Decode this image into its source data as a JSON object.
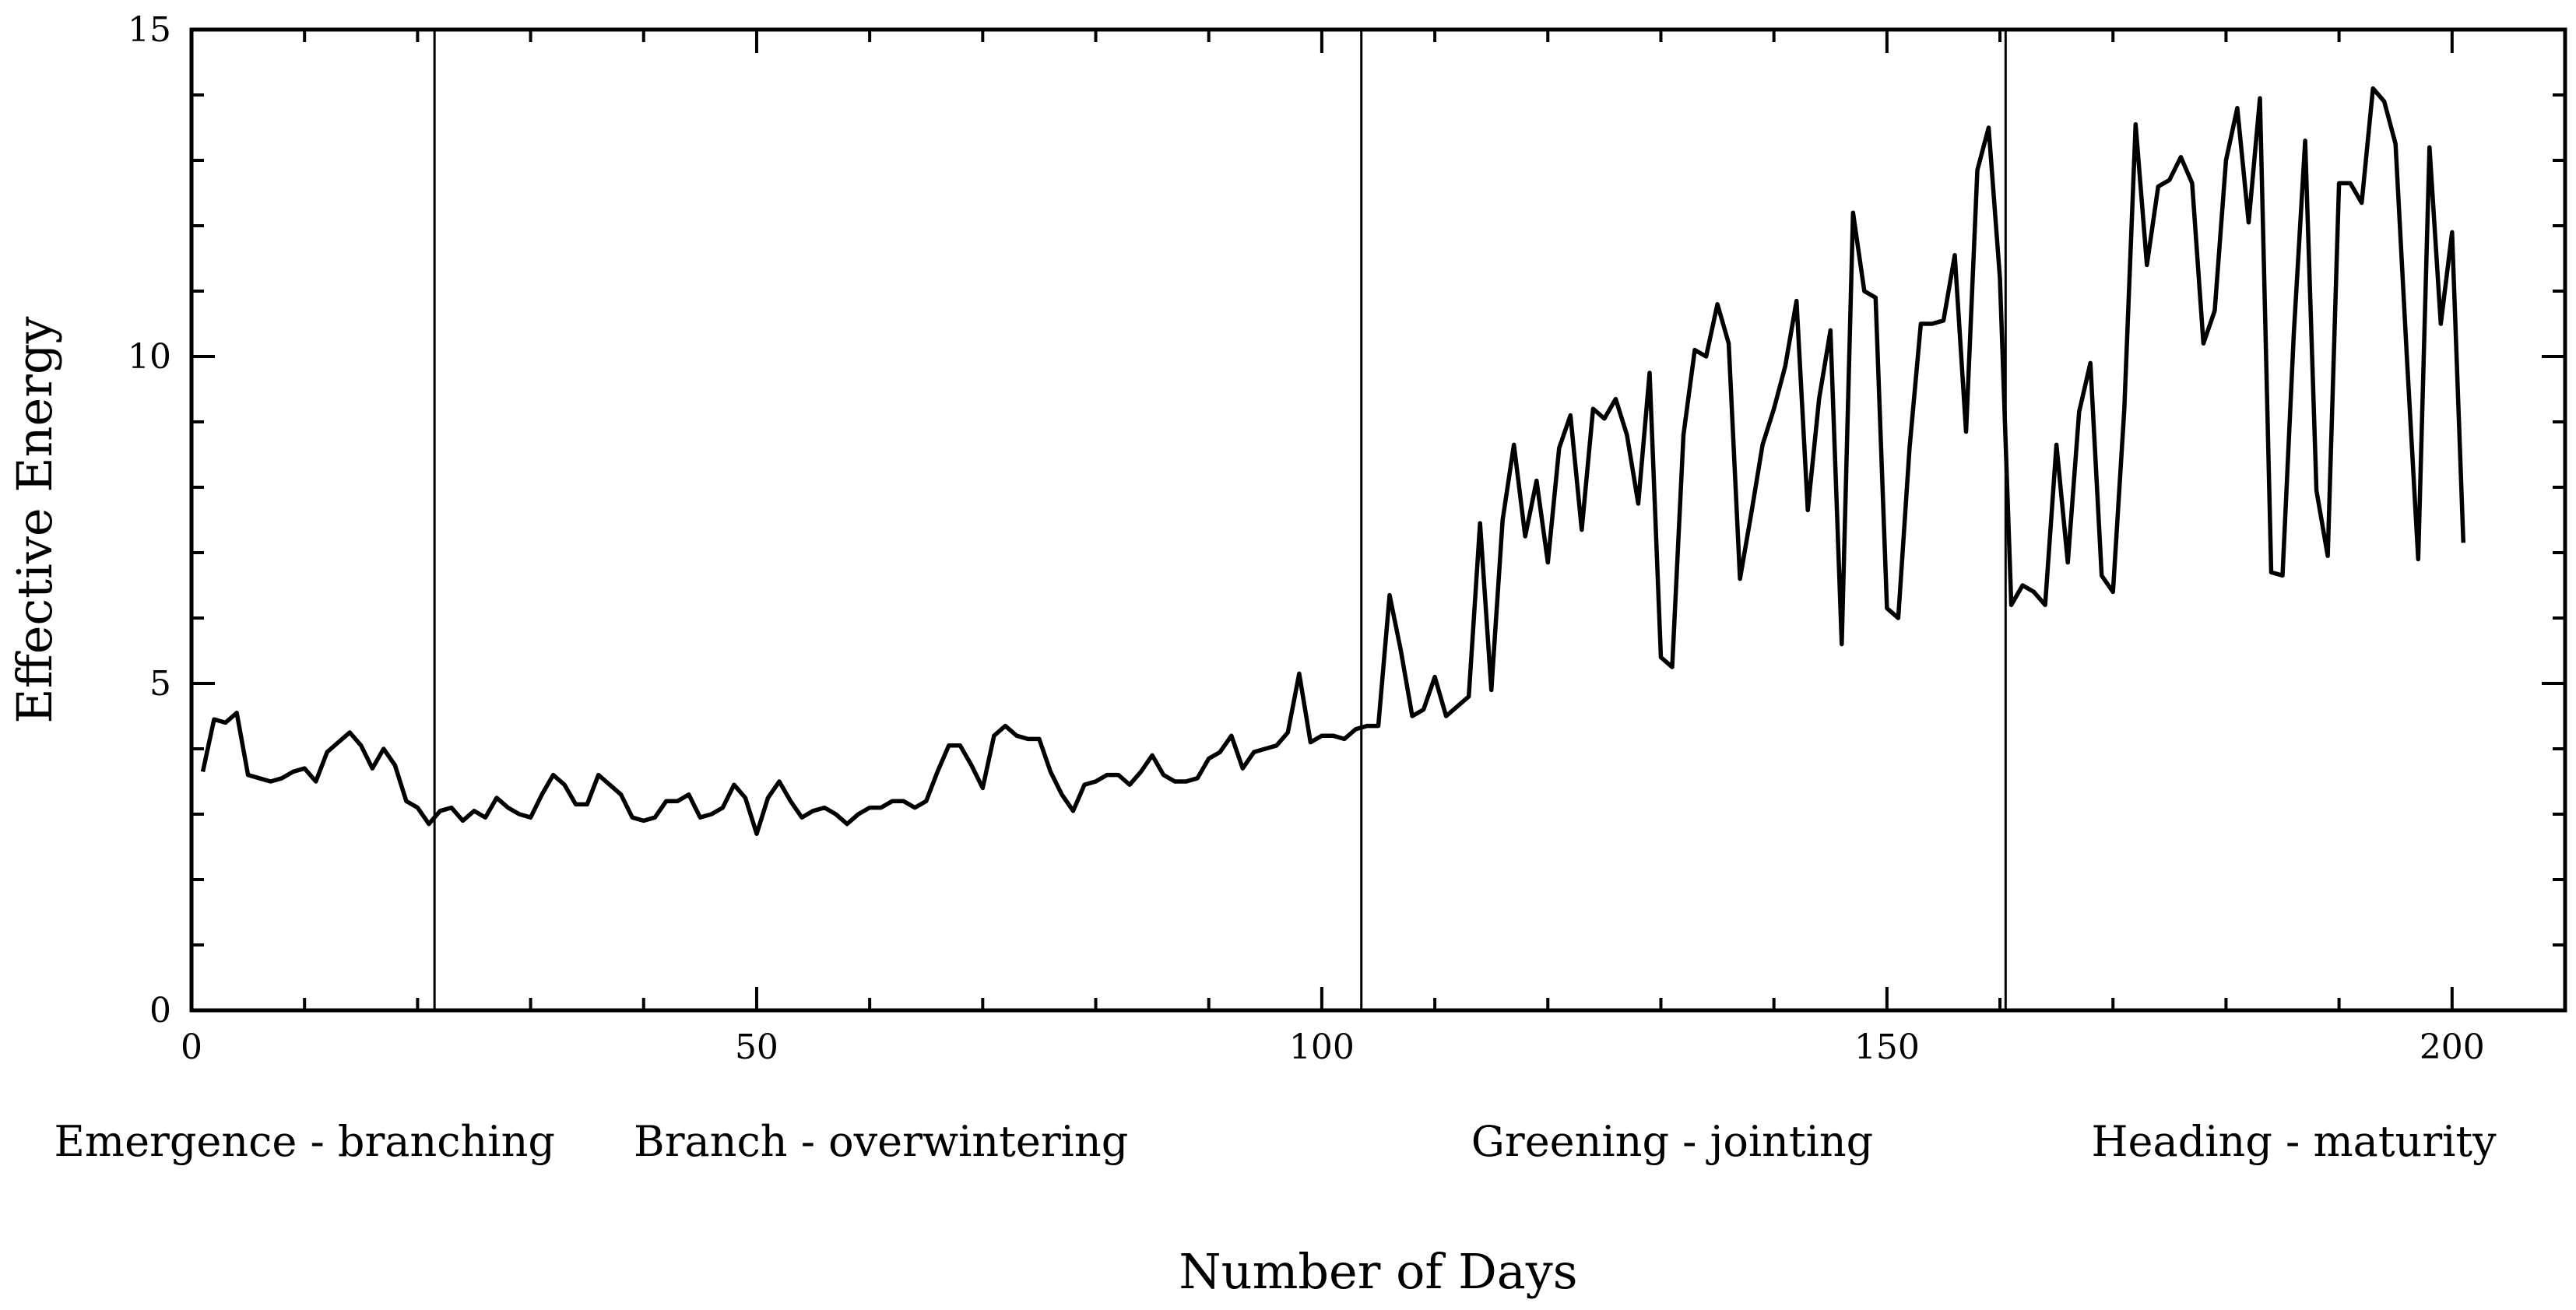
{
  "chart_data": {
    "type": "line",
    "title": "",
    "xlabel": "Number of Days",
    "ylabel": "Effective Energy",
    "xlim": [
      0,
      210
    ],
    "ylim": [
      0,
      15
    ],
    "x_ticks": [
      0,
      50,
      100,
      150,
      200
    ],
    "y_ticks": [
      0,
      5,
      10,
      15
    ],
    "grid": false,
    "phase_boundaries": [
      21.5,
      103.5,
      160.5
    ],
    "phases": [
      {
        "label": "Emergence - branching",
        "center_x": 10
      },
      {
        "label": "Branch - overwintering",
        "center_x": 61
      },
      {
        "label": "Greening - jointing",
        "center_x": 131
      },
      {
        "label": "Heading - maturity",
        "center_x": 186
      }
    ],
    "series": [
      {
        "x": [
          1,
          2,
          3,
          4,
          5,
          6,
          7,
          8,
          9,
          10,
          11,
          12,
          13,
          14,
          15,
          16,
          17,
          18,
          19,
          20,
          21,
          22,
          23,
          24,
          25,
          26,
          27,
          28,
          29,
          30,
          31,
          32,
          33,
          34,
          35,
          36,
          37,
          38,
          39,
          40,
          41,
          42,
          43,
          44,
          45,
          46,
          47,
          48,
          49,
          50,
          51,
          52,
          53,
          54,
          55,
          56,
          57,
          58,
          59,
          60,
          61,
          62,
          63,
          64,
          65,
          66,
          67,
          68,
          69,
          70,
          71,
          72,
          73,
          74,
          75,
          76,
          77,
          78,
          79,
          80,
          81,
          82,
          83,
          84,
          85,
          86,
          87,
          88,
          89,
          90,
          91,
          92,
          93,
          94,
          95,
          96,
          97,
          98,
          99,
          100,
          101,
          102,
          103,
          104,
          105,
          106,
          107,
          108,
          109,
          110,
          111,
          112,
          113,
          114,
          115,
          116,
          117,
          118,
          119,
          120,
          121,
          122,
          123,
          124,
          125,
          126,
          127,
          128,
          129,
          130,
          131,
          132,
          133,
          134,
          135,
          136,
          137,
          138,
          139,
          140,
          141,
          142,
          143,
          144,
          145,
          146,
          147,
          148,
          149,
          150,
          151,
          152,
          153,
          154,
          155,
          156,
          157,
          158,
          159,
          160,
          161,
          162,
          163,
          164,
          165,
          166,
          167,
          168,
          169,
          170,
          171,
          172,
          173,
          174,
          175,
          176,
          177,
          178,
          179,
          180,
          181,
          182,
          183,
          184,
          185,
          186,
          187,
          188,
          189,
          190,
          191,
          192,
          193,
          194,
          195,
          196,
          197,
          198,
          199,
          200,
          201
        ],
        "y": [
          3.65,
          4.45,
          4.4,
          4.55,
          3.6,
          3.55,
          3.5,
          3.55,
          3.65,
          3.7,
          3.5,
          3.95,
          4.1,
          4.25,
          4.05,
          3.7,
          4.0,
          3.75,
          3.2,
          3.1,
          2.85,
          3.05,
          3.1,
          2.9,
          3.05,
          2.95,
          3.25,
          3.1,
          3.0,
          2.95,
          3.3,
          3.6,
          3.45,
          3.15,
          3.15,
          3.6,
          3.45,
          3.3,
          2.95,
          2.9,
          2.95,
          3.2,
          3.2,
          3.3,
          2.95,
          3.0,
          3.1,
          3.45,
          3.25,
          2.7,
          3.25,
          3.5,
          3.2,
          2.95,
          3.05,
          3.1,
          3.0,
          2.85,
          3.0,
          3.1,
          3.1,
          3.2,
          3.2,
          3.1,
          3.2,
          3.65,
          4.05,
          4.05,
          3.75,
          3.4,
          4.2,
          4.35,
          4.2,
          4.15,
          4.15,
          3.65,
          3.3,
          3.05,
          3.45,
          3.5,
          3.6,
          3.6,
          3.45,
          3.65,
          3.9,
          3.6,
          3.5,
          3.5,
          3.55,
          3.85,
          3.95,
          4.2,
          3.7,
          3.95,
          4.0,
          4.05,
          4.25,
          5.15,
          4.1,
          4.2,
          4.2,
          4.15,
          4.3,
          4.35,
          4.35,
          6.35,
          5.5,
          4.5,
          4.6,
          5.1,
          4.5,
          4.65,
          4.8,
          7.45,
          4.9,
          7.5,
          8.65,
          7.25,
          8.1,
          6.85,
          8.6,
          9.1,
          7.35,
          9.2,
          9.05,
          9.35,
          8.8,
          7.75,
          9.75,
          5.4,
          5.25,
          8.8,
          10.1,
          10.0,
          10.8,
          10.2,
          6.6,
          7.6,
          8.65,
          9.2,
          9.85,
          10.85,
          7.65,
          9.35,
          10.4,
          5.6,
          12.2,
          11.0,
          10.9,
          6.15,
          6.0,
          8.6,
          10.5,
          10.5,
          10.55,
          11.55,
          8.85,
          12.85,
          13.5,
          11.2,
          6.2,
          6.5,
          6.4,
          6.2,
          8.65,
          6.85,
          9.15,
          9.9,
          6.65,
          6.4,
          9.2,
          13.55,
          11.4,
          12.6,
          12.7,
          13.05,
          12.65,
          10.2,
          10.7,
          13.0,
          13.8,
          12.05,
          13.95,
          6.7,
          6.65,
          10.35,
          13.3,
          7.95,
          6.95,
          12.65,
          12.65,
          12.35,
          14.1,
          13.9,
          13.25,
          10.0,
          6.9,
          13.2,
          10.5,
          11.9,
          7.15
        ]
      }
    ]
  }
}
